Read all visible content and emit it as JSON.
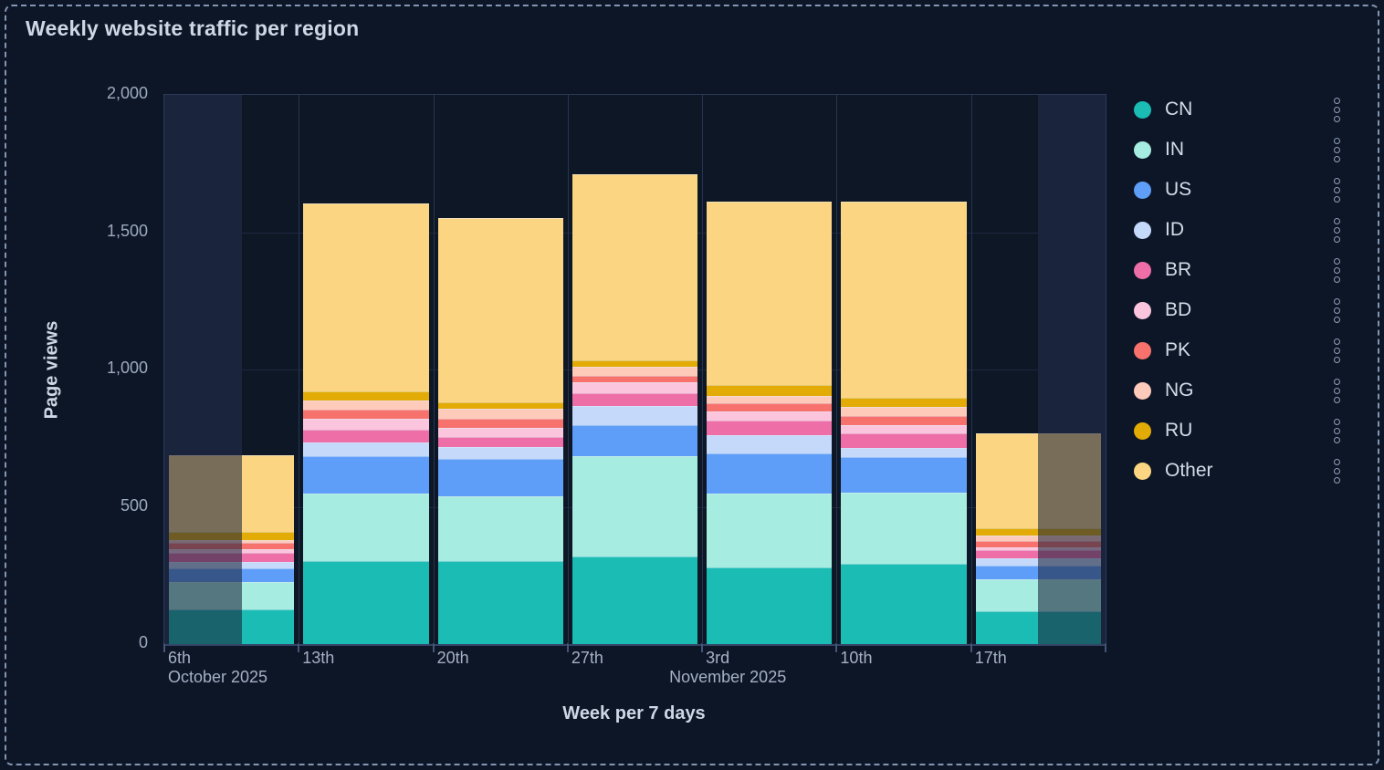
{
  "card": {
    "title": "Weekly website traffic per region"
  },
  "chart_data": {
    "type": "bar",
    "stacked": true,
    "title": "Weekly website traffic per region",
    "xlabel": "Week per 7 days",
    "ylabel": "Page views",
    "ylim": [
      0,
      2000
    ],
    "grid": true,
    "legend_position": "right",
    "categories": [
      "6th",
      "13th",
      "20th",
      "27th",
      "3rd",
      "10th",
      "17th"
    ],
    "month_labels": {
      "0": "October 2025",
      "4": "November 2025"
    },
    "y_ticks": [
      {
        "label": "0",
        "value": 0
      },
      {
        "label": "500",
        "value": 500
      },
      {
        "label": "1,000",
        "value": 1000
      },
      {
        "label": "1,500",
        "value": 1500
      },
      {
        "label": "2,000",
        "value": 2000
      }
    ],
    "series": [
      {
        "name": "CN",
        "color": "#1abcb4",
        "values": [
          127,
          301,
          301,
          318,
          279,
          293,
          119
        ]
      },
      {
        "name": "IN",
        "color": "#a6ece0",
        "values": [
          100,
          247,
          236,
          365,
          269,
          258,
          117
        ]
      },
      {
        "name": "US",
        "color": "#5f9ef8",
        "values": [
          50,
          135,
          136,
          116,
          147,
          130,
          49
        ]
      },
      {
        "name": "ID",
        "color": "#c5d9fb",
        "values": [
          22,
          50,
          44,
          67,
          66,
          33,
          29
        ]
      },
      {
        "name": "BR",
        "color": "#ee6fa8",
        "values": [
          33,
          48,
          38,
          49,
          52,
          52,
          27
        ]
      },
      {
        "name": "BD",
        "color": "#fbc6dd",
        "values": [
          15,
          39,
          33,
          37,
          33,
          33,
          11
        ]
      },
      {
        "name": "PK",
        "color": "#f7726c",
        "values": [
          22,
          35,
          33,
          26,
          30,
          33,
          22
        ]
      },
      {
        "name": "NG",
        "color": "#fecaba",
        "values": [
          11,
          31,
          37,
          33,
          29,
          31,
          22
        ]
      },
      {
        "name": "RU",
        "color": "#e2ab05",
        "values": [
          30,
          33,
          22,
          22,
          38,
          33,
          26
        ]
      },
      {
        "name": "Other",
        "color": "#fbd581",
        "values": [
          278,
          686,
          672,
          678,
          668,
          715,
          346
        ]
      }
    ],
    "totals": [
      688,
      1605,
      1552,
      1711,
      1611,
      1611,
      768
    ],
    "dim_overlay_fractions": [
      [
        0,
        0.0824
      ],
      [
        0.9282,
        1
      ]
    ]
  },
  "legend": {
    "kebab_icon": "three-dots-vertical"
  }
}
